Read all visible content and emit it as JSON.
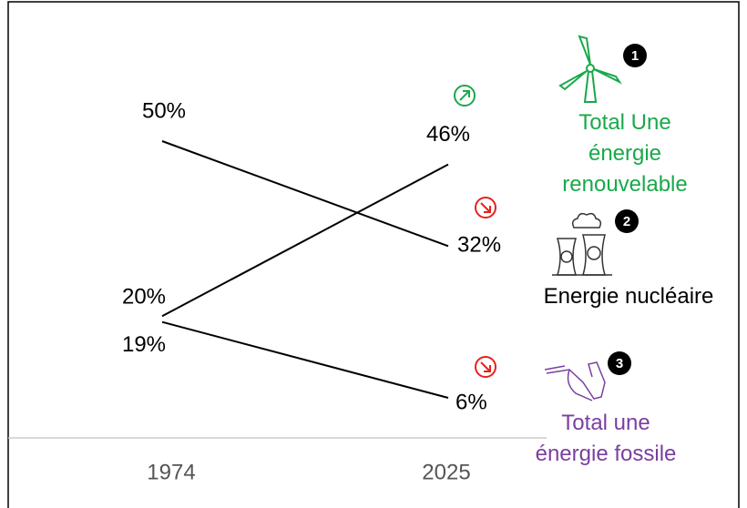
{
  "chart_data": {
    "type": "slope",
    "categories": [
      "1974",
      "2025"
    ],
    "series": [
      {
        "name": "Total Une énergie renouvelable",
        "badge": 1,
        "color": "#1aa84a",
        "values": [
          20,
          46
        ],
        "value_labels": [
          "20%",
          "46%"
        ]
      },
      {
        "name": "Energie nucléaire",
        "badge": 2,
        "color": "#000000",
        "values": [
          50,
          32
        ],
        "value_labels": [
          "50%",
          "32%"
        ]
      },
      {
        "name": "Total une énergie fossile",
        "badge": 3,
        "color": "#7a3fa0",
        "values": [
          19,
          6
        ],
        "value_labels": [
          "19%",
          "6%"
        ]
      }
    ],
    "line_color": "#000000",
    "up_color": "#1aa84a",
    "down_color": "#e8201c"
  }
}
